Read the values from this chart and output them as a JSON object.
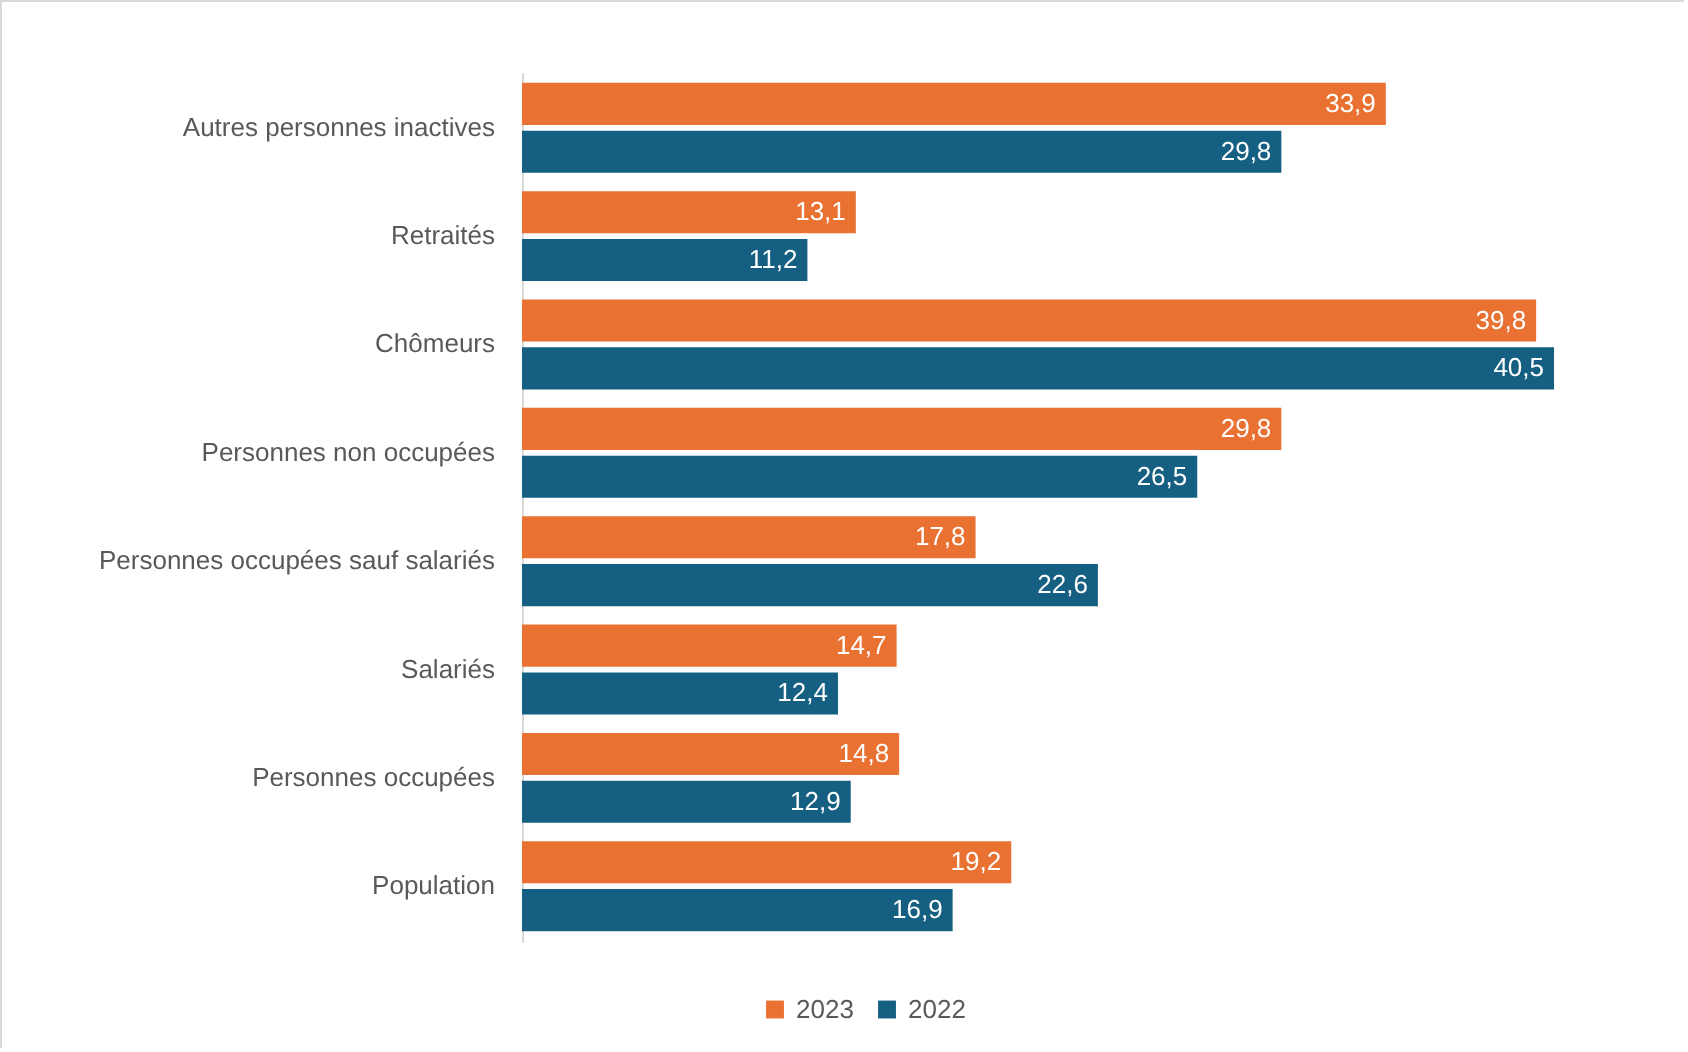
{
  "chart_data": {
    "type": "bar",
    "orientation": "horizontal",
    "categories": [
      "Autres personnes inactives",
      "Retraités",
      "Chômeurs",
      "Personnes non occupées",
      "Personnes occupées sauf salariés",
      "Salariés",
      "Personnes occupées",
      "Population"
    ],
    "series": [
      {
        "name": "2023",
        "color": "#e97132",
        "values": [
          33.9,
          13.1,
          39.8,
          29.8,
          17.8,
          14.7,
          14.8,
          19.2
        ],
        "value_labels": [
          "33,9",
          "13,1",
          "39,8",
          "29,8",
          "17,8",
          "14,7",
          "14,8",
          "19,2"
        ]
      },
      {
        "name": "2022",
        "color": "#156082",
        "values": [
          29.8,
          11.2,
          40.5,
          26.5,
          22.6,
          12.4,
          12.9,
          16.9
        ],
        "value_labels": [
          "29,8",
          "11,2",
          "40,5",
          "26,5",
          "22,6",
          "12,4",
          "12,9",
          "16,9"
        ]
      }
    ],
    "legend": "bottom",
    "grid": false
  }
}
